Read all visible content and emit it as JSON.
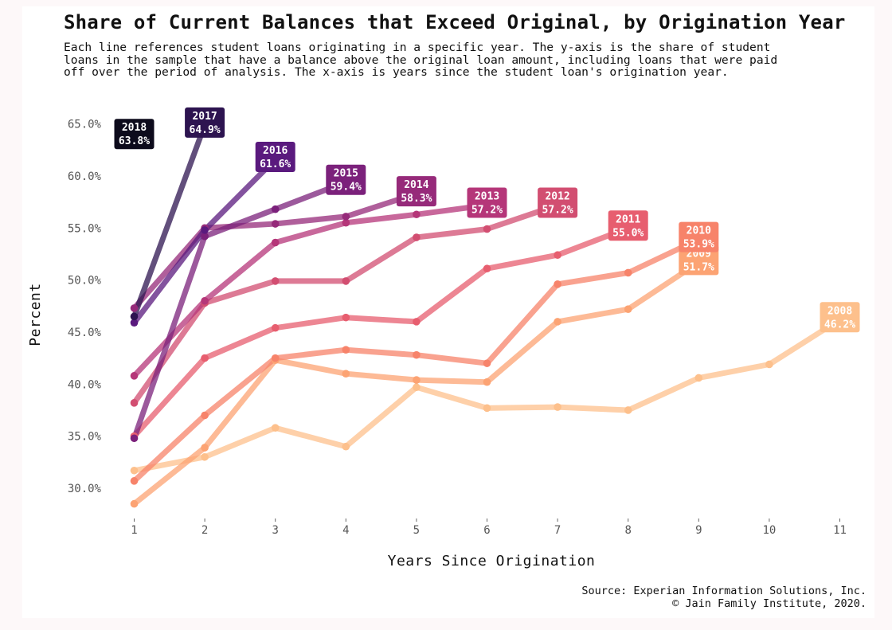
{
  "header": {
    "title": "Share of Current Balances that Exceed Original, by Origination Year",
    "subtitle_lines": [
      "Each line references student loans originating in a specific year. The y-axis is the share of student",
      "loans in the sample that have a balance above the original loan amount, including loans that were paid",
      "off over the period of analysis. The x-axis is years since the student loan's origination year."
    ]
  },
  "footer": {
    "source": "Source: Experian Information Solutions, Inc.",
    "copyright": "© Jain Family Institute, 2020."
  },
  "chart_data": {
    "type": "line",
    "title": "Share of Current Balances that Exceed Original, by Origination Year",
    "xlabel": "Years Since Origination",
    "ylabel": "Percent",
    "x_ticks": [
      1,
      2,
      3,
      4,
      5,
      6,
      7,
      8,
      9,
      10,
      11
    ],
    "y_ticks": [
      "30.0%",
      "35.0%",
      "40.0%",
      "45.0%",
      "50.0%",
      "55.0%",
      "60.0%",
      "65.0%"
    ],
    "y_tick_values": [
      30,
      35,
      40,
      45,
      50,
      55,
      60,
      65
    ],
    "xlim": [
      0.5,
      11.5
    ],
    "ylim": [
      27.5,
      66.5
    ],
    "grid": false,
    "series": [
      {
        "name": "2008",
        "color": "#fdc08c",
        "label": "46.2%",
        "values": [
          31.7,
          33.0,
          35.8,
          34.0,
          39.7,
          37.7,
          37.8,
          37.5,
          40.6,
          41.9,
          46.2
        ]
      },
      {
        "name": "2009",
        "color": "#fca373",
        "label": "51.7%",
        "values": [
          28.5,
          33.9,
          42.3,
          41.0,
          40.4,
          40.2,
          46.0,
          47.2,
          51.7
        ]
      },
      {
        "name": "2010",
        "color": "#f7836a",
        "label": "53.9%",
        "values": [
          30.7,
          37.0,
          42.5,
          43.3,
          42.8,
          42.0,
          49.6,
          50.7,
          53.9
        ]
      },
      {
        "name": "2011",
        "color": "#e75e6f",
        "label": "55.0%",
        "values": [
          35.0,
          42.5,
          45.4,
          46.4,
          46.0,
          51.1,
          52.4,
          55.0
        ]
      },
      {
        "name": "2012",
        "color": "#d24e71",
        "label": "57.2%",
        "values": [
          38.2,
          47.8,
          49.9,
          49.9,
          54.1,
          54.9,
          57.2
        ]
      },
      {
        "name": "2013",
        "color": "#b53679",
        "label": "57.2%",
        "values": [
          40.8,
          48.0,
          53.6,
          55.5,
          56.3,
          57.2
        ]
      },
      {
        "name": "2014",
        "color": "#962a7a",
        "label": "58.3%",
        "values": [
          47.3,
          55.0,
          55.4,
          56.1,
          58.3
        ]
      },
      {
        "name": "2015",
        "color": "#7b217b",
        "label": "59.4%",
        "values": [
          34.8,
          54.2,
          56.8,
          59.4
        ]
      },
      {
        "name": "2016",
        "color": "#5a1a7e",
        "label": "61.6%",
        "values": [
          45.9,
          54.8,
          61.6
        ]
      },
      {
        "name": "2017",
        "color": "#2d1450",
        "label": "64.9%",
        "values": [
          46.5,
          64.9
        ]
      },
      {
        "name": "2018",
        "color": "#0d0b1c",
        "label": "63.8%",
        "values": [
          63.8
        ]
      }
    ]
  }
}
